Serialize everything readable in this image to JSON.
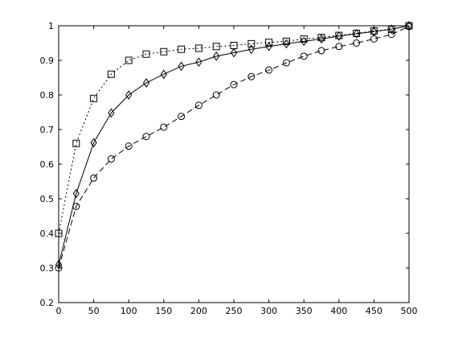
{
  "chart_data": {
    "type": "line",
    "title": "",
    "xlabel": "",
    "ylabel": "",
    "xlim": [
      0,
      500
    ],
    "ylim": [
      0.2,
      1
    ],
    "xticks": [
      0,
      50,
      100,
      150,
      200,
      250,
      300,
      350,
      400,
      450,
      500
    ],
    "yticks": [
      0.2,
      0.3,
      0.4,
      0.5,
      0.6,
      0.7,
      0.8,
      0.9,
      1
    ],
    "ytick_labels": [
      "0.2",
      "0.3",
      "0.4",
      "0.5",
      "0.6",
      "0.7",
      "0.8",
      "0.9",
      "1"
    ],
    "grid": false,
    "legend": "none",
    "x": [
      0,
      25,
      50,
      75,
      100,
      125,
      150,
      175,
      200,
      225,
      250,
      275,
      300,
      325,
      350,
      375,
      400,
      425,
      450,
      475,
      500
    ],
    "series": [
      {
        "marker": "square",
        "line_style": "dotted",
        "color": "#000000",
        "values": [
          0.4,
          0.66,
          0.79,
          0.86,
          0.9,
          0.918,
          0.925,
          0.932,
          0.935,
          0.94,
          0.943,
          0.948,
          0.952,
          0.955,
          0.962,
          0.966,
          0.972,
          0.978,
          0.985,
          0.99,
          1.0
        ]
      },
      {
        "marker": "diamond",
        "line_style": "solid",
        "color": "#000000",
        "values": [
          0.31,
          0.515,
          0.662,
          0.748,
          0.8,
          0.835,
          0.86,
          0.883,
          0.895,
          0.912,
          0.922,
          0.932,
          0.94,
          0.948,
          0.955,
          0.962,
          0.97,
          0.977,
          0.983,
          0.99,
          1.0
        ]
      },
      {
        "marker": "circle",
        "line_style": "dashed",
        "color": "#000000",
        "values": [
          0.3,
          0.478,
          0.56,
          0.615,
          0.652,
          0.68,
          0.707,
          0.738,
          0.77,
          0.8,
          0.83,
          0.853,
          0.872,
          0.893,
          0.912,
          0.928,
          0.94,
          0.95,
          0.962,
          0.975,
          0.998
        ]
      }
    ]
  }
}
